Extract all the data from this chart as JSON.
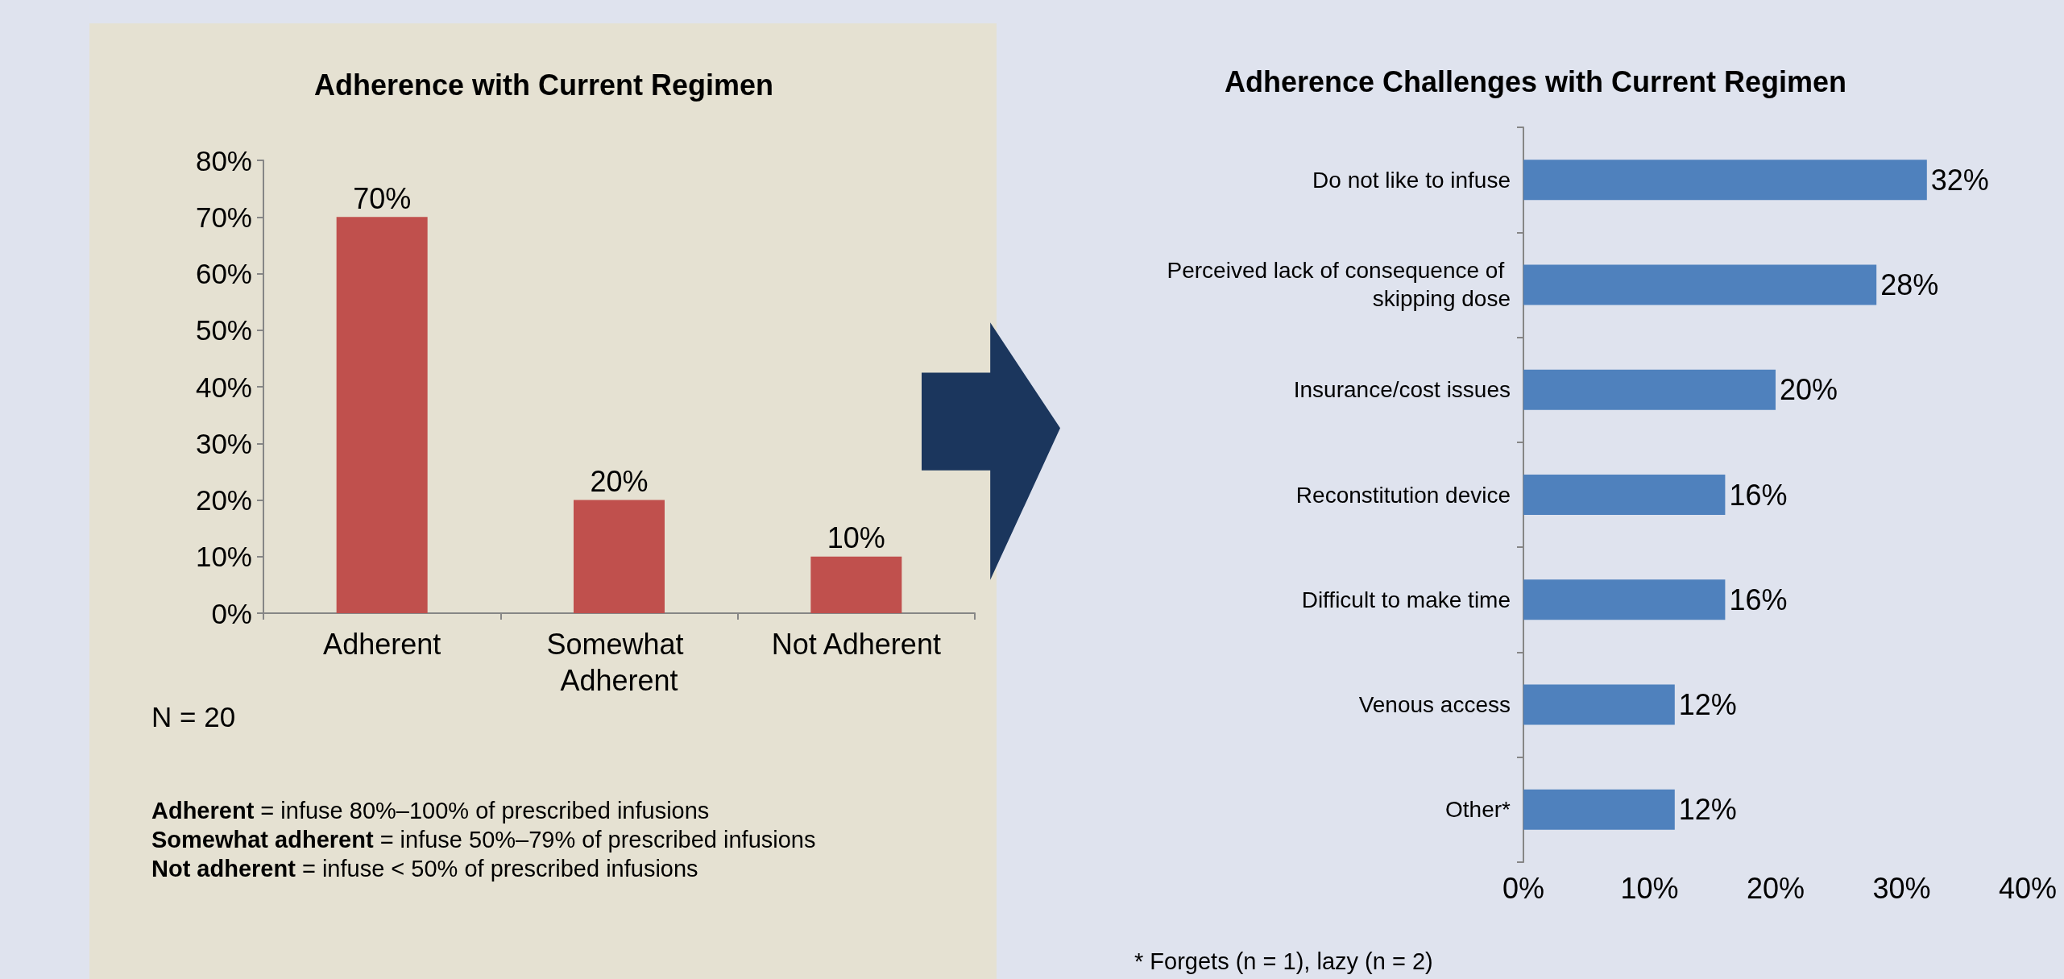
{
  "chart_data": [
    {
      "type": "bar",
      "title": "Adherence with Current Regimen",
      "categories": [
        "Adherent",
        "Somewhat Adherent",
        "Not Adherent"
      ],
      "values": [
        70,
        20,
        10
      ],
      "color": "#c0504d",
      "value_labels": [
        "70%",
        "20%",
        "10%"
      ],
      "ylim": [
        0,
        80
      ],
      "yticks": [
        {
          "value": 0,
          "label": "0%"
        },
        {
          "value": 10,
          "label": "10%"
        },
        {
          "value": 20,
          "label": "20%"
        },
        {
          "value": 30,
          "label": "30%"
        },
        {
          "value": 40,
          "label": "40%"
        },
        {
          "value": 50,
          "label": "50%"
        },
        {
          "value": 60,
          "label": "60%"
        },
        {
          "value": 70,
          "label": "70%"
        },
        {
          "value": 80,
          "label": "80%"
        }
      ],
      "annotations": [
        "N = 20",
        "Adherent = infuse 80%–100% of prescribed infusions",
        "Somewhat adherent = infuse 50%–79% of prescribed infusions",
        "Not adherent = infuse < 50% of prescribed infusions"
      ]
    },
    {
      "type": "bar",
      "orientation": "horizontal",
      "title": "Adherence Challenges with Current Regimen",
      "categories": [
        "Do not like to infuse",
        "Perceived lack of consequence of skipping dose",
        "Insurance/cost issues",
        "Reconstitution device",
        "Difficult to make time",
        "Venous access",
        "Other*"
      ],
      "values": [
        32,
        28,
        20,
        16,
        16,
        12,
        12
      ],
      "color": "#4f81bd",
      "value_labels": [
        "32%",
        "28%",
        "20%",
        "16%",
        "16%",
        "12%",
        "12%"
      ],
      "xlim": [
        0,
        40
      ],
      "xticks": [
        {
          "value": 0,
          "label": "0%"
        },
        {
          "value": 10,
          "label": "10%"
        },
        {
          "value": 20,
          "label": "20%"
        },
        {
          "value": 30,
          "label": "30%"
        },
        {
          "value": 40,
          "label": "40%"
        }
      ],
      "annotations": [
        "* Forgets (n = 1), lazy (n = 2)"
      ]
    }
  ]
}
